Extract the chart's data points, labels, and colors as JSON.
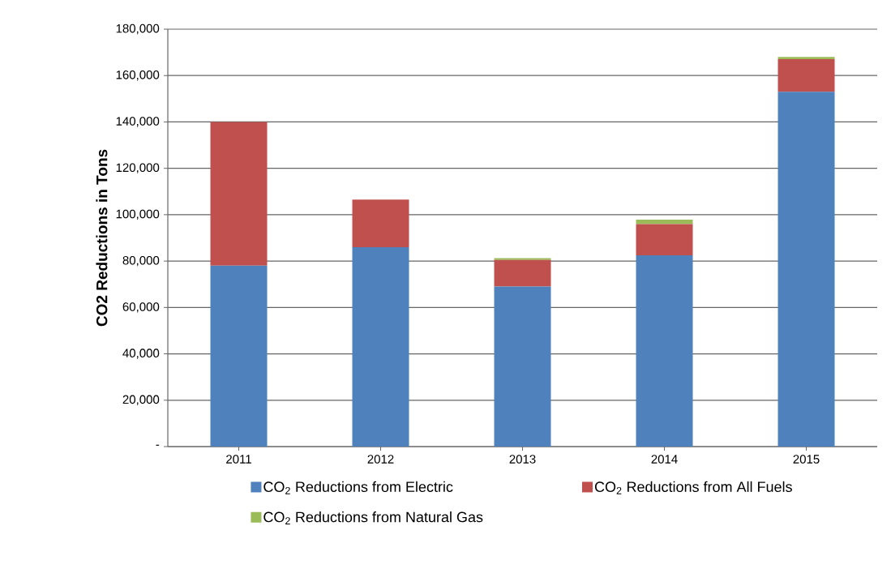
{
  "chart_data": {
    "type": "bar",
    "stacked": true,
    "ylabel": "CO2 Reductions in Tons",
    "categories": [
      "2011",
      "2012",
      "2013",
      "2014",
      "2015"
    ],
    "series": [
      {
        "name": "CO$_{2}$ Reductions from Electric",
        "color": "#4f81bd",
        "values": [
          78000,
          86000,
          69000,
          82500,
          153000
        ]
      },
      {
        "name": "CO$_{2}$ Reductions from All Fuels",
        "color": "#c0504d",
        "values": [
          62000,
          20500,
          11500,
          13400,
          14100
        ]
      },
      {
        "name": "CO$_{2}$ Reductions from Natural Gas",
        "color": "#9bbb59",
        "values": [
          0,
          0,
          800,
          2000,
          900
        ]
      }
    ],
    "ylim": [
      0,
      180000
    ],
    "yticks": [
      {
        "value": 0,
        "label": "-"
      },
      {
        "value": 20000,
        "label": "20,000"
      },
      {
        "value": 40000,
        "label": "40,000"
      },
      {
        "value": 60000,
        "label": "60,000"
      },
      {
        "value": 80000,
        "label": "80,000"
      },
      {
        "value": 100000,
        "label": "100,000"
      },
      {
        "value": 120000,
        "label": "120,000"
      },
      {
        "value": 140000,
        "label": "140,000"
      },
      {
        "value": 160000,
        "label": "160,000"
      },
      {
        "value": 180000,
        "label": "180,000"
      }
    ],
    "grid": "y",
    "legend": "bottom"
  }
}
